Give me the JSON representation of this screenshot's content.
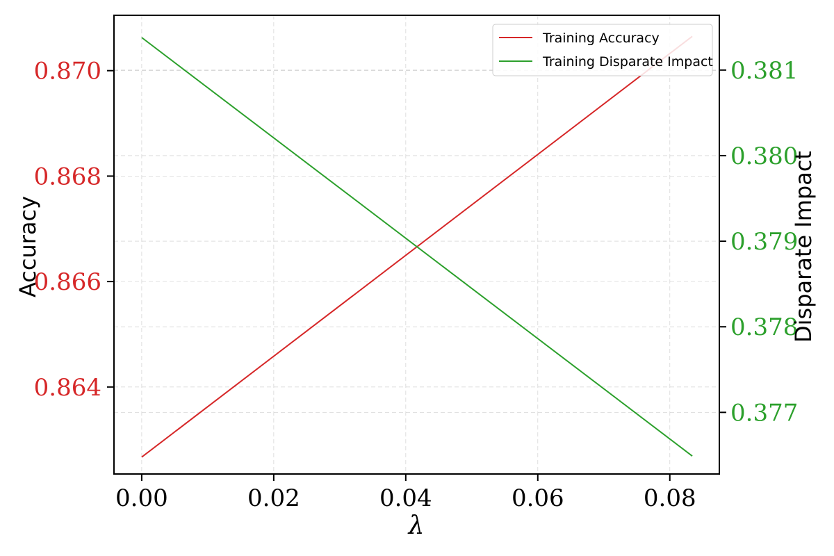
{
  "chart_data": {
    "type": "line",
    "xlabel": "λ",
    "ylabel_left": "Accuracy",
    "ylabel_right": "Disparate Impact",
    "xlim": [
      -0.0042,
      0.0875
    ],
    "xticks": [
      0.0,
      0.02,
      0.04,
      0.06,
      0.08
    ],
    "xtick_labels": [
      "0.00",
      "0.02",
      "0.04",
      "0.06",
      "0.08"
    ],
    "ylim_left": [
      0.86235,
      0.87105
    ],
    "yticks_left": [
      0.864,
      0.866,
      0.868,
      0.87
    ],
    "ytick_labels_left": [
      "0.864",
      "0.866",
      "0.868",
      "0.870"
    ],
    "ylim_right": [
      0.37628,
      0.38164
    ],
    "yticks_right": [
      0.377,
      0.378,
      0.379,
      0.38,
      0.381
    ],
    "ytick_labels_right": [
      "0.377",
      "0.378",
      "0.379",
      "0.380",
      "0.381"
    ],
    "grid": true,
    "legend_position": "top-right",
    "left_axis_color": "#d62728",
    "right_axis_color": "#2ca02c",
    "series": [
      {
        "name": "Training Accuracy",
        "axis": "left",
        "color": "#d62728",
        "x": [
          0.0,
          0.0834
        ],
        "y": [
          0.86267,
          0.87065
        ]
      },
      {
        "name": "Training Disparate Impact",
        "axis": "right",
        "color": "#2ca02c",
        "x": [
          0.0,
          0.0834
        ],
        "y": [
          0.38138,
          0.37649
        ]
      }
    ]
  }
}
